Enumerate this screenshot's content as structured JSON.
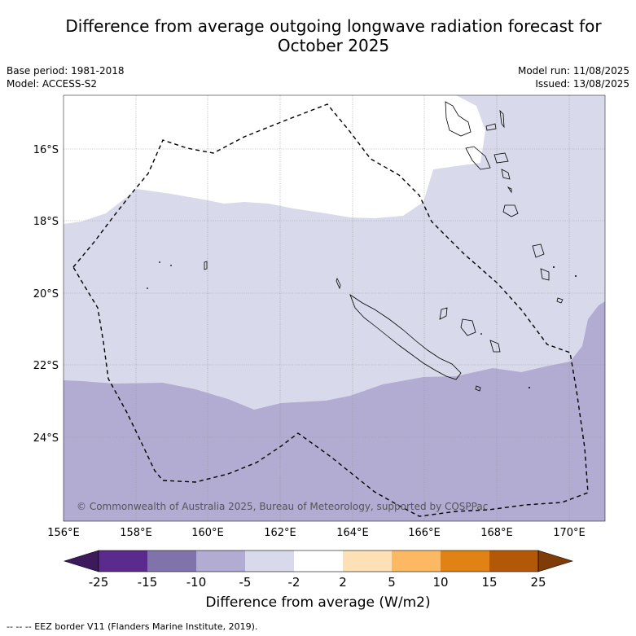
{
  "title": {
    "line1": "Difference from average outgoing longwave radiation forecast for",
    "line2": "October 2025"
  },
  "meta_left": {
    "base_period": "Base period: 1981-2018",
    "model": "Model: ACCESS-S2"
  },
  "meta_right": {
    "model_run": "Model run: 11/08/2025",
    "issued": "Issued: 13/08/2025"
  },
  "map": {
    "copyright": "© Commonwealth of Australia 2025, Bureau of Meteorology, supported by COSPPac",
    "lon_ticks": [
      "156°E",
      "158°E",
      "160°E",
      "162°E",
      "164°E",
      "166°E",
      "168°E",
      "170°E"
    ],
    "lat_ticks": [
      "16°S",
      "18°S",
      "20°S",
      "22°S",
      "24°S"
    ],
    "lon_range": [
      156,
      171
    ],
    "lat_range": [
      -26.3,
      -14.5
    ]
  },
  "colorbar": {
    "tick_labels": [
      "-25",
      "-15",
      "-10",
      "-5",
      "-2",
      "2",
      "5",
      "10",
      "15",
      "25"
    ],
    "colors": [
      "#3c1a5b",
      "#5a2a8c",
      "#8073ac",
      "#b2abd2",
      "#d8daeb",
      "#ffffff",
      "#fee0b6",
      "#fdb863",
      "#e08214",
      "#b35806",
      "#7f3b08"
    ],
    "label": "Difference from average (W/m2)"
  },
  "footnote": "--  --  -- EEZ border V11 (Flanders Marine Institute, 2019)."
}
